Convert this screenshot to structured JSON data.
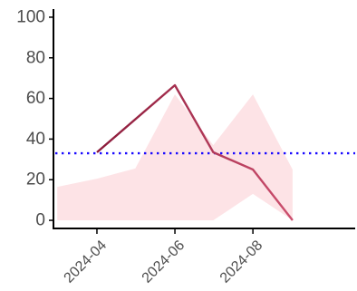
{
  "colors": {
    "band": "#fde3e6",
    "line_start": "#8b1a3a",
    "line_end": "#cc4f6e",
    "reference": "#1a0aff",
    "axis": "#000000",
    "tick_text": "#4d4d4d"
  },
  "chart_data": {
    "type": "line",
    "title": "",
    "xlabel": "",
    "ylabel": "",
    "x_ticks": [
      "2024-04",
      "2024-06",
      "2024-08"
    ],
    "y_ticks": [
      0,
      20,
      40,
      60,
      80,
      100
    ],
    "ylim": [
      -4,
      104
    ],
    "xlim": [
      "2024-02-27",
      "2024-10-20"
    ],
    "grid": false,
    "legend": "none",
    "series": [
      {
        "x": [
          "2024-04-01",
          "2024-06-01",
          "2024-07-01",
          "2024-08-01",
          "2024-09-01"
        ],
        "y": [
          33.5,
          66.5,
          33.5,
          25,
          0
        ]
      }
    ],
    "band": {
      "x": [
        "2024-03-01",
        "2024-04-01",
        "2024-05-01",
        "2024-06-01",
        "2024-07-01",
        "2024-08-01",
        "2024-09-01"
      ],
      "lower": [
        0,
        0,
        0,
        0,
        0,
        13,
        0
      ],
      "upper": [
        16.5,
        20.5,
        25.5,
        62,
        37,
        62,
        25
      ]
    },
    "reference_line": {
      "y": 33
    }
  }
}
